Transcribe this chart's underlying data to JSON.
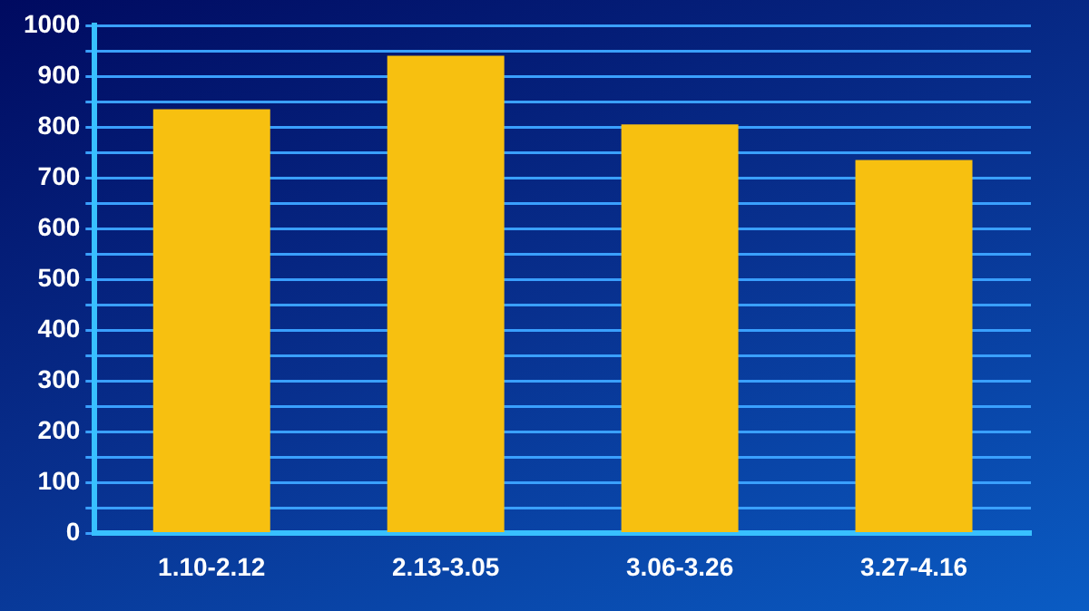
{
  "chart_data": {
    "type": "bar",
    "categories": [
      "1.10-2.12",
      "2.13-3.05",
      "3.06-3.26",
      "3.27-4.16"
    ],
    "values": [
      835,
      940,
      805,
      735
    ],
    "color": "#f7c010",
    "ylim": [
      0,
      1000
    ],
    "yticks": [
      0,
      {
        "value": 50,
        "label": null
      },
      100,
      {
        "value": 150,
        "label": null
      },
      200,
      {
        "value": 250,
        "label": null
      },
      300,
      {
        "value": 350,
        "label": null
      },
      400,
      {
        "value": 450,
        "label": null
      },
      500,
      {
        "value": 550,
        "label": null
      },
      600,
      {
        "value": 650,
        "label": null
      },
      700,
      {
        "value": 750,
        "label": null
      },
      800,
      {
        "value": 850,
        "label": null
      },
      900,
      {
        "value": 950,
        "label": null
      },
      1000
    ],
    "grid": "y",
    "legend": false
  }
}
